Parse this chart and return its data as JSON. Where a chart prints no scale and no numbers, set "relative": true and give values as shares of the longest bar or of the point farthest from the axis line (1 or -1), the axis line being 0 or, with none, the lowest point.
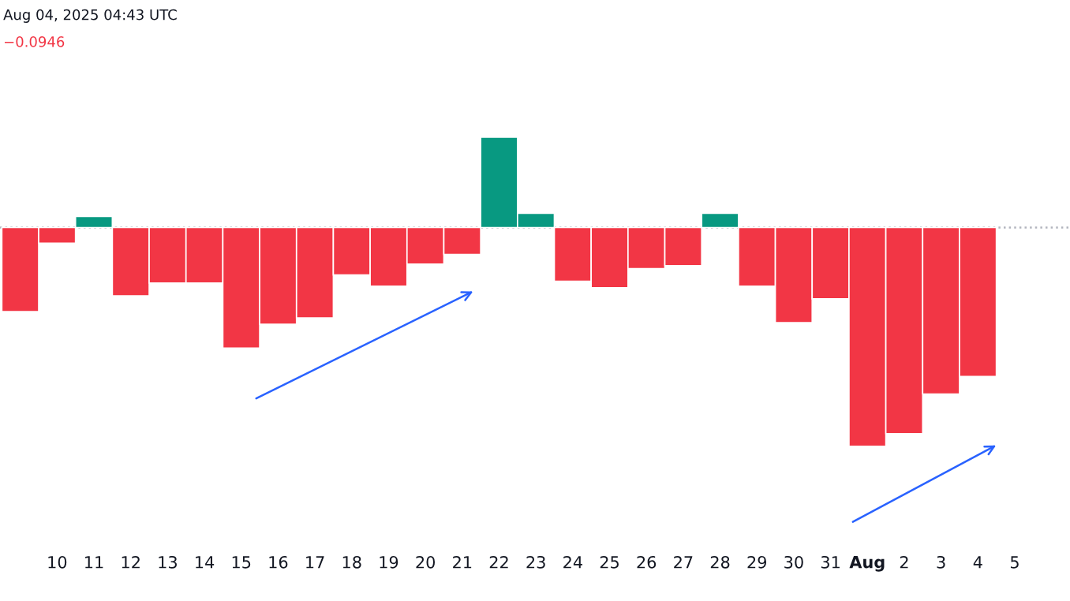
{
  "chart_data": {
    "type": "bar",
    "relative": true,
    "categories": [
      null,
      "10",
      "11",
      "12",
      "13",
      "14",
      "15",
      "16",
      "17",
      "18",
      "19",
      "20",
      "21",
      "22",
      "23",
      "24",
      "25",
      "26",
      "27",
      "28",
      "29",
      "30",
      "31",
      "Aug",
      "2",
      "3",
      "4",
      "5"
    ],
    "values": [
      -0.384,
      -0.072,
      0.051,
      -0.312,
      -0.254,
      -0.254,
      -0.551,
      -0.442,
      -0.413,
      -0.217,
      -0.268,
      -0.167,
      -0.123,
      0.413,
      0.065,
      -0.246,
      -0.275,
      -0.188,
      -0.174,
      0.065,
      -0.268,
      -0.435,
      -0.326,
      -1,
      -0.942,
      -0.761,
      -0.681,
      null
    ],
    "colors": [
      "#f23645",
      "#f23645",
      "#089981",
      "#f23645",
      "#f23645",
      "#f23645",
      "#f23645",
      "#f23645",
      "#f23645",
      "#f23645",
      "#f23645",
      "#f23645",
      "#f23645",
      "#089981",
      "#089981",
      "#f23645",
      "#f23645",
      "#f23645",
      "#f23645",
      "#089981",
      "#f23645",
      "#f23645",
      "#f23645",
      "#f23645",
      "#f23645",
      "#f23645",
      "#f23645",
      "#f23645"
    ],
    "ref_lines": [
      {
        "axis": "y",
        "value": 0,
        "color": "#b2b5be",
        "line_style": "dotted"
      }
    ],
    "annotations": [
      "Aug 04, 2025 04:43 UTC",
      "−0.0946"
    ],
    "grid": false,
    "legend": false
  }
}
